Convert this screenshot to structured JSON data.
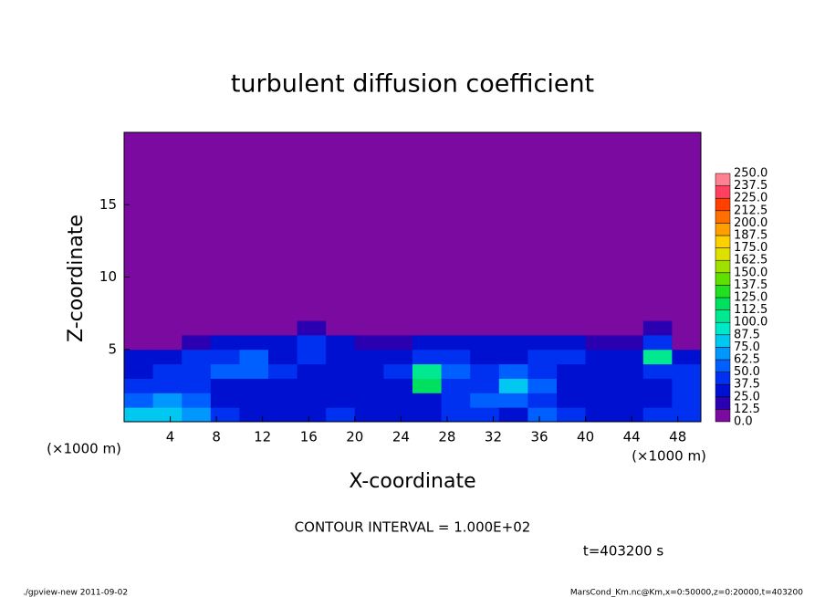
{
  "chart_data": {
    "type": "heatmap",
    "title": "turbulent diffusion coefficient",
    "x_label": "X-coordinate",
    "y_label": "Z-coordinate",
    "x_unit": "(×1000 m)",
    "y_unit": "(×1000 m)",
    "annotation": "CONTOUR INTERVAL = 1.000E+02",
    "time_label": "t=403200 s",
    "footer_left": "./gpview-new  2011-09-02",
    "footer_right": "MarsCond_Km.nc@Km,x=0:50000,z=0:20000,t=403200",
    "xlim": [
      0,
      50
    ],
    "ylim": [
      0,
      20
    ],
    "xticks": [
      4,
      8,
      12,
      16,
      20,
      24,
      28,
      32,
      36,
      40,
      44,
      48
    ],
    "yticks": [
      5,
      10,
      15
    ],
    "x": [
      1.25,
      3.75,
      6.25,
      8.75,
      11.25,
      13.75,
      16.25,
      18.75,
      21.25,
      23.75,
      26.25,
      28.75,
      31.25,
      33.75,
      36.25,
      38.75,
      41.25,
      43.75,
      46.25,
      48.75
    ],
    "y": [
      0.5,
      1.5,
      2.5,
      3.5,
      4.5,
      5.5,
      6.5,
      7.5
    ],
    "values": [
      [
        80,
        75,
        70,
        40,
        35,
        30,
        30,
        40,
        35,
        30,
        30,
        45,
        40,
        35,
        50,
        40,
        35,
        30,
        40,
        45
      ],
      [
        60,
        70,
        55,
        35,
        30,
        30,
        25,
        35,
        30,
        30,
        35,
        40,
        50,
        60,
        45,
        35,
        30,
        30,
        35,
        40
      ],
      [
        40,
        45,
        40,
        30,
        35,
        30,
        25,
        30,
        30,
        35,
        120,
        45,
        40,
        80,
        50,
        30,
        30,
        35,
        30,
        40
      ],
      [
        35,
        40,
        45,
        50,
        60,
        40,
        30,
        35,
        30,
        40,
        110,
        50,
        45,
        55,
        40,
        35,
        30,
        30,
        40,
        45
      ],
      [
        30,
        35,
        40,
        45,
        50,
        35,
        40,
        30,
        35,
        30,
        45,
        40,
        35,
        35,
        40,
        40,
        30,
        35,
        110,
        30
      ],
      [
        5,
        5,
        20,
        30,
        25,
        35,
        40,
        35,
        20,
        15,
        30,
        30,
        30,
        25,
        30,
        35,
        20,
        15,
        40,
        10
      ],
      [
        0,
        0,
        0,
        5,
        0,
        10,
        15,
        10,
        5,
        0,
        5,
        5,
        0,
        0,
        0,
        5,
        0,
        0,
        20,
        0
      ],
      [
        0,
        0,
        0,
        0,
        0,
        0,
        0,
        0,
        0,
        5,
        0,
        0,
        0,
        0,
        0,
        0,
        0,
        0,
        0,
        0
      ]
    ],
    "levels": [
      {
        "value": 0,
        "label": "0.0"
      },
      {
        "value": 12.5,
        "label": "12.5"
      },
      {
        "value": 25,
        "label": "25.0"
      },
      {
        "value": 37.5,
        "label": "37.5"
      },
      {
        "value": 50,
        "label": "50.0"
      },
      {
        "value": 62.5,
        "label": "62.5"
      },
      {
        "value": 75,
        "label": "75.0"
      },
      {
        "value": 87.5,
        "label": "87.5"
      },
      {
        "value": 100,
        "label": "100.0"
      },
      {
        "value": 112.5,
        "label": "112.5"
      },
      {
        "value": 125,
        "label": "125.0"
      },
      {
        "value": 137.5,
        "label": "137.5"
      },
      {
        "value": 150,
        "label": "150.0"
      },
      {
        "value": 162.5,
        "label": "162.5"
      },
      {
        "value": 175,
        "label": "175.0"
      },
      {
        "value": 187.5,
        "label": "187.5"
      },
      {
        "value": 200,
        "label": "200.0"
      },
      {
        "value": 212.5,
        "label": "212.5"
      },
      {
        "value": 225,
        "label": "225.0"
      },
      {
        "value": 237.5,
        "label": "237.5"
      },
      {
        "value": 250,
        "label": "250.0"
      }
    ],
    "level_colors": [
      "#7a0aa0",
      "#2a00b0",
      "#0010d0",
      "#0030f0",
      "#0060ff",
      "#0098ff",
      "#00c8f0",
      "#00e8c8",
      "#00e890",
      "#00e060",
      "#20e020",
      "#60e000",
      "#a0e000",
      "#e0e000",
      "#ffd000",
      "#ffa000",
      "#ff7000",
      "#ff4000",
      "#ff4060",
      "#ff8090"
    ]
  }
}
